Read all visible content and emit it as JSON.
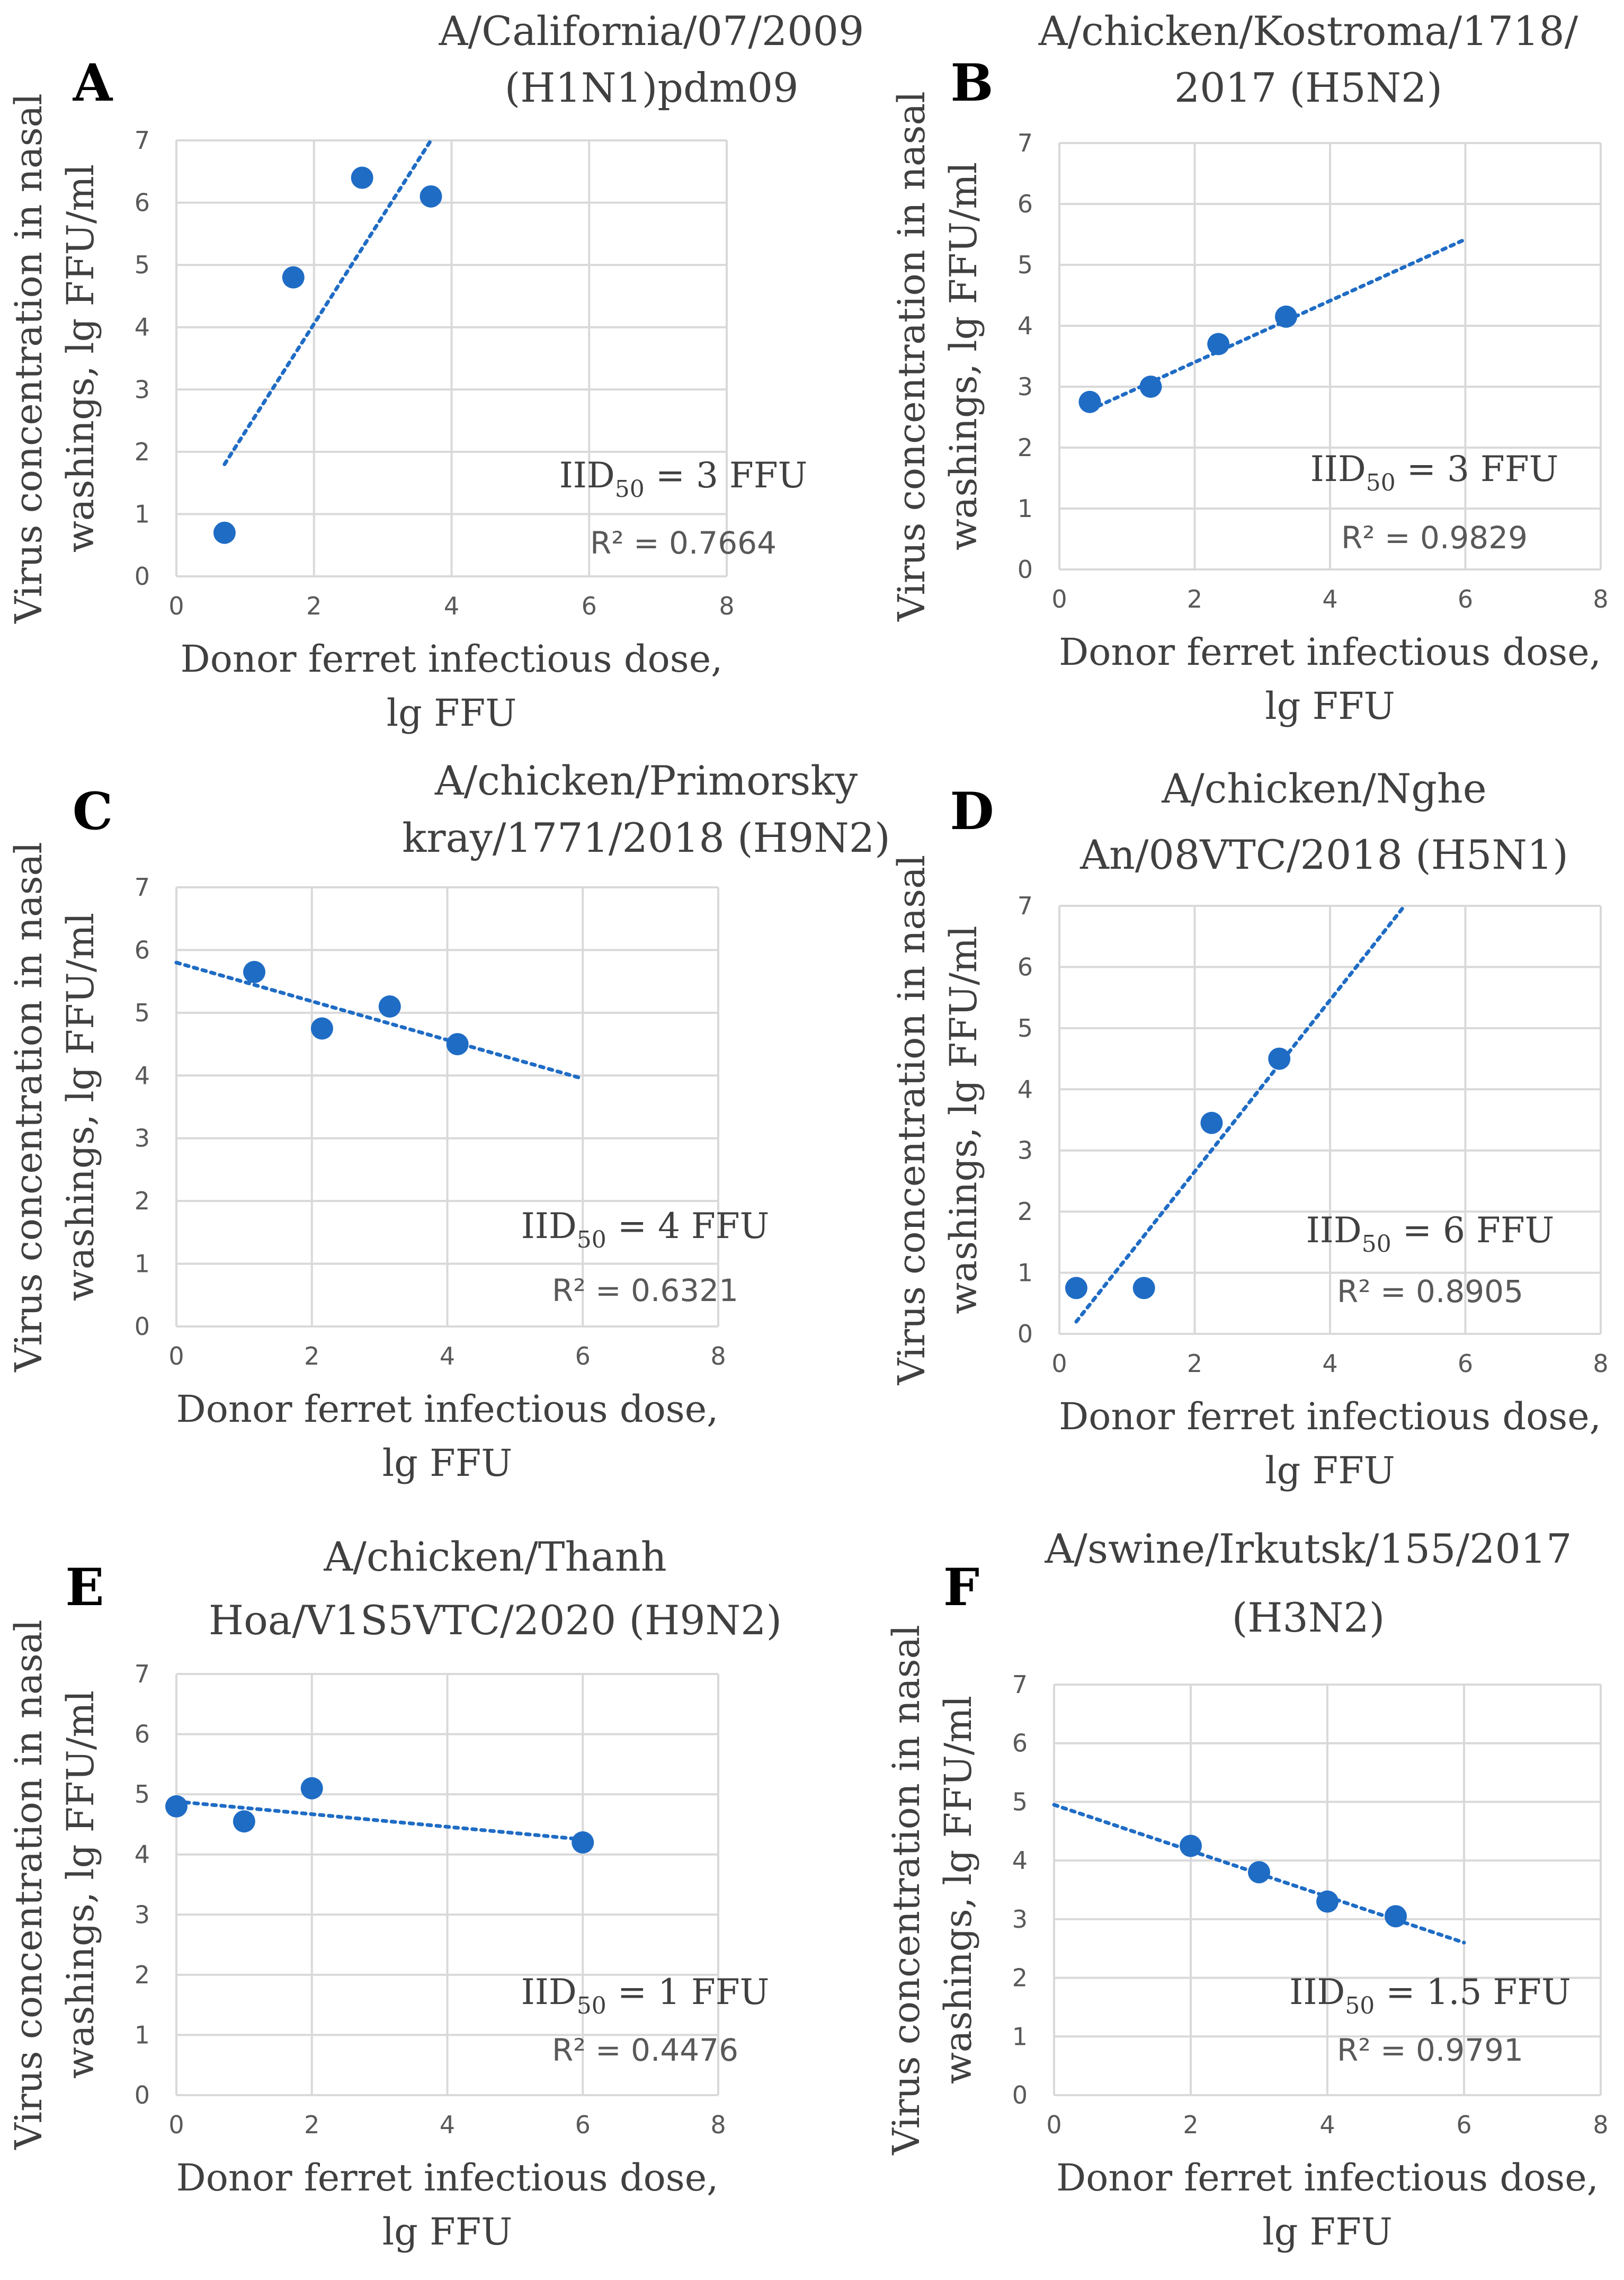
{
  "figure": {
    "caption": ""
  },
  "chart_data": [
    {
      "panel": "A",
      "type": "scatter",
      "title_lines": [
        "A/California/07/2009",
        "(H1N1)pdm09"
      ],
      "xlabel_lines": [
        "Donor ferret infectious dose,",
        "lg FFU"
      ],
      "ylabel_lines": [
        "Virus concentration in nasal",
        "washings, lg FFU/ml"
      ],
      "xlim": [
        0,
        8
      ],
      "ylim": [
        0,
        7
      ],
      "xticks": [
        0,
        2,
        4,
        6,
        8
      ],
      "yticks": [
        0,
        1,
        2,
        3,
        4,
        5,
        6,
        7
      ],
      "series": [
        {
          "name": "data",
          "x": [
            0.7,
            1.7,
            2.7,
            3.7
          ],
          "y": [
            0.7,
            4.8,
            6.4,
            6.1
          ],
          "color": "#1f6cc5"
        }
      ],
      "trendline": {
        "x": [
          0.7,
          3.7
        ],
        "y": [
          1.8,
          7.0
        ],
        "color": "#1f6cc5"
      },
      "iid_prefix": "IID",
      "iid_sub": "50",
      "iid_suffix": " = 3 FFU",
      "r2": "R² = 0.7664"
    },
    {
      "panel": "B",
      "type": "scatter",
      "title_lines": [
        "A/chicken/Kostroma/1718/",
        "2017 (H5N2)"
      ],
      "xlabel_lines": [
        "Donor ferret infectious dose,",
        "lg FFU"
      ],
      "ylabel_lines": [
        "Virus concentration in nasal",
        "washings, lg FFU/ml"
      ],
      "xlim": [
        0,
        8
      ],
      "ylim": [
        0,
        7
      ],
      "xticks": [
        0,
        2,
        4,
        6,
        8
      ],
      "yticks": [
        0,
        1,
        2,
        3,
        4,
        5,
        6,
        7
      ],
      "series": [
        {
          "name": "data",
          "x": [
            0.45,
            1.35,
            2.35,
            3.35
          ],
          "y": [
            2.75,
            3.0,
            3.7,
            4.15
          ],
          "color": "#1f6cc5"
        }
      ],
      "trendline": {
        "x": [
          0.45,
          6.0
        ],
        "y": [
          2.62,
          5.42
        ],
        "color": "#1f6cc5"
      },
      "iid_prefix": "IID",
      "iid_sub": "50",
      "iid_suffix": " = 3 FFU",
      "r2": "R² = 0.9829"
    },
    {
      "panel": "C",
      "type": "scatter",
      "title_lines": [
        "A/chicken/Primorsky",
        "kray/1771/2018 (H9N2)"
      ],
      "xlabel_lines": [
        "Donor ferret infectious dose,",
        "lg FFU"
      ],
      "ylabel_lines": [
        "Virus concentration in nasal",
        "washings, lg FFU/ml"
      ],
      "xlim": [
        0,
        8
      ],
      "ylim": [
        0,
        7
      ],
      "xticks": [
        0,
        2,
        4,
        6,
        8
      ],
      "yticks": [
        0,
        1,
        2,
        3,
        4,
        5,
        6,
        7
      ],
      "series": [
        {
          "name": "data",
          "x": [
            1.15,
            2.15,
            3.15,
            4.15
          ],
          "y": [
            5.65,
            4.75,
            5.1,
            4.5
          ],
          "color": "#1f6cc5"
        }
      ],
      "trendline": {
        "x": [
          0.0,
          6.0
        ],
        "y": [
          5.8,
          3.95
        ],
        "color": "#1f6cc5"
      },
      "iid_prefix": "IID",
      "iid_sub": "50",
      "iid_suffix": " = 4 FFU",
      "r2": "R² = 0.6321"
    },
    {
      "panel": "D",
      "type": "scatter",
      "title_lines": [
        "A/chicken/Nghe",
        "An/08VTC/2018 (H5N1)"
      ],
      "xlabel_lines": [
        "Donor ferret infectious dose,",
        "lg FFU"
      ],
      "ylabel_lines": [
        "Virus concentration in nasal",
        "washings, lg FFU/ml"
      ],
      "xlim": [
        0,
        8
      ],
      "ylim": [
        0,
        7
      ],
      "xticks": [
        0,
        2,
        4,
        6,
        8
      ],
      "yticks": [
        0,
        1,
        2,
        3,
        4,
        5,
        6,
        7
      ],
      "series": [
        {
          "name": "data",
          "x": [
            0.25,
            1.25,
            2.25,
            3.25
          ],
          "y": [
            0.75,
            0.75,
            3.45,
            4.5
          ],
          "color": "#1f6cc5"
        }
      ],
      "trendline": {
        "x": [
          0.25,
          5.1
        ],
        "y": [
          0.2,
          7.0
        ],
        "color": "#1f6cc5"
      },
      "iid_prefix": "IID",
      "iid_sub": "50",
      "iid_suffix": " = 6 FFU",
      "r2": "R² = 0.8905"
    },
    {
      "panel": "E",
      "type": "scatter",
      "title_lines": [
        "A/chicken/Thanh",
        "Hoa/V1S5VTC/2020 (H9N2)"
      ],
      "xlabel_lines": [
        "Donor ferret infectious dose,",
        "lg FFU"
      ],
      "ylabel_lines": [
        "Virus concentration in nasal",
        "washings, lg FFU/ml"
      ],
      "xlim": [
        0,
        8
      ],
      "ylim": [
        0,
        7
      ],
      "xticks": [
        0,
        2,
        4,
        6,
        8
      ],
      "yticks": [
        0,
        1,
        2,
        3,
        4,
        5,
        6,
        7
      ],
      "series": [
        {
          "name": "data",
          "x": [
            0,
            1,
            2,
            6
          ],
          "y": [
            4.8,
            4.55,
            5.1,
            4.2
          ],
          "color": "#1f6cc5"
        }
      ],
      "trendline": {
        "x": [
          0.0,
          6.0
        ],
        "y": [
          4.88,
          4.25
        ],
        "color": "#1f6cc5"
      },
      "iid_prefix": "IID",
      "iid_sub": "50",
      "iid_suffix": " = 1 FFU",
      "r2": "R² = 0.4476"
    },
    {
      "panel": "F",
      "type": "scatter",
      "title_lines": [
        "A/swine/Irkutsk/155/2017",
        "(H3N2)"
      ],
      "xlabel_lines": [
        "Donor ferret infectious dose,",
        "lg FFU"
      ],
      "ylabel_lines": [
        "Virus concentration in nasal",
        "washings, lg FFU/ml"
      ],
      "xlim": [
        0,
        8
      ],
      "ylim": [
        0,
        7
      ],
      "xticks": [
        0,
        2,
        4,
        6,
        8
      ],
      "yticks": [
        0,
        1,
        2,
        3,
        4,
        5,
        6,
        7
      ],
      "series": [
        {
          "name": "data",
          "x": [
            2,
            3,
            4,
            5
          ],
          "y": [
            4.25,
            3.8,
            3.3,
            3.05
          ],
          "color": "#1f6cc5"
        }
      ],
      "trendline": {
        "x": [
          0.0,
          6.0
        ],
        "y": [
          4.95,
          2.6
        ],
        "color": "#1f6cc5"
      },
      "iid_prefix": "IID",
      "iid_sub": "50",
      "iid_suffix": " = 1.5 FFU",
      "r2": "R² = 0.9791"
    }
  ]
}
